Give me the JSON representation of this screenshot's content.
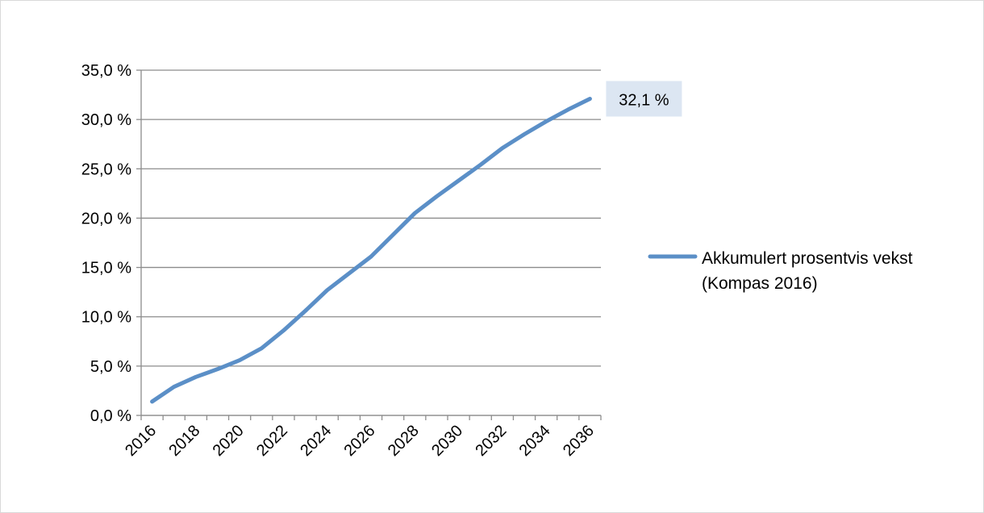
{
  "chart_data": {
    "type": "line",
    "categories": [
      "2016",
      null,
      "2018",
      null,
      "2020",
      null,
      "2022",
      null,
      "2024",
      null,
      "2026",
      null,
      "2028",
      null,
      "2030",
      null,
      "2032",
      null,
      "2034",
      null,
      "2036"
    ],
    "series": [
      {
        "name": "Akkumulert prosentvis vekst (Kompas 2016)",
        "color": "#5b8fc7",
        "values": [
          1.4,
          2.9,
          3.9,
          4.7,
          5.6,
          6.8,
          8.6,
          10.6,
          12.7,
          14.4,
          16.1,
          18.3,
          20.5,
          22.2,
          23.8,
          25.4,
          27.1,
          28.5,
          29.8,
          31.0,
          32.1
        ],
        "value_labels": [
          null,
          null,
          null,
          null,
          null,
          null,
          null,
          null,
          null,
          null,
          null,
          null,
          null,
          null,
          null,
          null,
          null,
          null,
          null,
          null,
          "32,1 %"
        ]
      }
    ],
    "ylim": [
      0,
      35
    ],
    "yticks": [
      {
        "value": 0,
        "label": "0,0 %"
      },
      {
        "value": 5,
        "label": "5,0 %"
      },
      {
        "value": 10,
        "label": "10,0 %"
      },
      {
        "value": 15,
        "label": "15,0 %"
      },
      {
        "value": 20,
        "label": "20,0 %"
      },
      {
        "value": 25,
        "label": "25,0 %"
      },
      {
        "value": 30,
        "label": "30,0 %"
      },
      {
        "value": 35,
        "label": "35,0 %"
      }
    ],
    "grid": true,
    "legend": "right"
  }
}
